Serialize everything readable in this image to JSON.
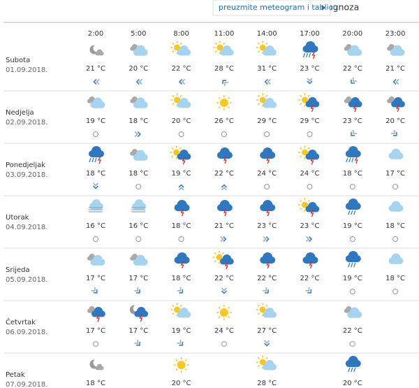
{
  "header": {
    "title": "Osijek - sedmodnevna prognoza",
    "button": "preuzmite meteogram i tablicu"
  },
  "table": {
    "times": [
      "2:00",
      "5:00",
      "8:00",
      "11:00",
      "14:00",
      "17:00",
      "20:00",
      "23:00"
    ],
    "days": [
      {
        "name": "Subota",
        "date": "01.09.2018.",
        "temps": [
          "21 °C",
          "20 °C",
          "22 °C",
          "28 °C",
          "31 °C",
          "23 °C",
          "22 °C",
          "21 °C"
        ]
      },
      {
        "name": "Nedjelja",
        "date": "02.09.2018.",
        "temps": [
          "19 °C",
          "18 °C",
          "20 °C",
          "26 °C",
          "29 °C",
          "29 °C",
          "23 °C",
          "20 °C"
        ]
      },
      {
        "name": "Ponedjeljak",
        "date": "03.09.2018.",
        "temps": [
          "18 °C",
          "18 °C",
          "19 °C",
          "22 °C",
          "24 °C",
          "24 °C",
          "18 °C",
          "17 °C"
        ]
      },
      {
        "name": "Utorak",
        "date": "04.09.2018.",
        "temps": [
          "16 °C",
          "16 °C",
          "18 °C",
          "21 °C",
          "23 °C",
          "23 °C",
          "19 °C",
          "18 °C"
        ]
      },
      {
        "name": "Srijeda",
        "date": "05.09.2018.",
        "temps": [
          "17 °C",
          "17 °C",
          "18 °C",
          "22 °C",
          "22 °C",
          "22 °C",
          "19 °C",
          "18 °C"
        ]
      },
      {
        "name": "Četvrtak",
        "date": "06.09.2018.",
        "temps": [
          "17 °C",
          "17 °C",
          "19 °C",
          "24 °C",
          "27 °C",
          null,
          "22 °C",
          null
        ]
      },
      {
        "name": "Petak",
        "date": "07.09.2018.",
        "temps": [
          "18 °C",
          null,
          "20 °C",
          null,
          "28 °C",
          null,
          "20 °C",
          null
        ]
      }
    ]
  }
}
